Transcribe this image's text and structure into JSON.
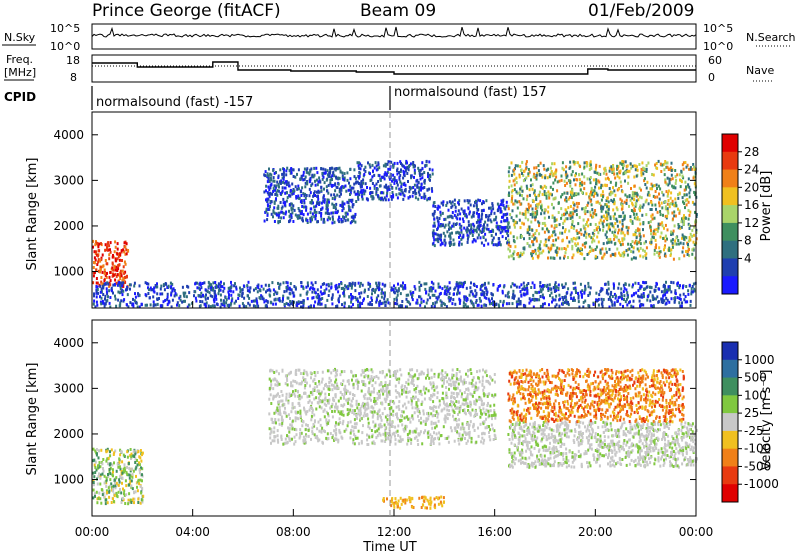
{
  "header": {
    "station": "Prince George (fitACF)",
    "beam": "Beam 09",
    "date": "01/Feb/2009"
  },
  "sky_panel": {
    "left_label": "N.Sky",
    "right_label": "N.Search",
    "left_ticks": [
      "10^5",
      "10^0"
    ],
    "right_ticks": [
      "10^5",
      "10^0"
    ]
  },
  "freq_panel": {
    "left_label_1": "Freq.",
    "left_label_2": "[MHz]",
    "right_label": "Nave",
    "left_ticks": [
      "18",
      "8"
    ],
    "right_ticks": [
      "60",
      "0"
    ]
  },
  "cpid": {
    "label": "CPID",
    "segments": [
      {
        "label": "normalsound (fast) -157",
        "start_hour": 0
      },
      {
        "label": "normalsound (fast) 157",
        "start_hour": 12
      }
    ]
  },
  "chart_data": [
    {
      "type": "heatmap",
      "name": "power",
      "ylabel": "Slant Range [km]",
      "ylim": [
        200,
        4500
      ],
      "yticks": [
        "1000",
        "2000",
        "3000",
        "4000"
      ],
      "xlim_hours": [
        0,
        24
      ],
      "colorbar_label": "Power [dB]",
      "colorbar_ticks": [
        "4",
        "8",
        "12",
        "16",
        "20",
        "24",
        "28"
      ],
      "colors": [
        "#1a1aff",
        "#1f3fb0",
        "#2f6f7f",
        "#3f8f5f",
        "#a9d46a",
        "#f0c020",
        "#f08018",
        "#e83a10",
        "#e00000"
      ],
      "features": [
        {
          "from_hour": 0.0,
          "to_hour": 1.4,
          "from_km": 700,
          "to_km": 1700,
          "level": "high"
        },
        {
          "from_hour": 6.8,
          "to_hour": 10.5,
          "from_km": 2100,
          "to_km": 3300,
          "level": "low"
        },
        {
          "from_hour": 10.5,
          "to_hour": 13.5,
          "from_km": 2600,
          "to_km": 3450,
          "level": "low"
        },
        {
          "from_hour": 13.5,
          "to_hour": 16.5,
          "from_km": 1600,
          "to_km": 2600,
          "level": "low"
        },
        {
          "from_hour": 16.5,
          "to_hour": 24.0,
          "from_km": 1300,
          "to_km": 3450,
          "level": "medium"
        },
        {
          "from_hour": 0.0,
          "to_hour": 24.0,
          "from_km": 250,
          "to_km": 800,
          "level": "low"
        }
      ]
    },
    {
      "type": "heatmap",
      "name": "velocity",
      "ylabel": "Slant Range [km]",
      "ylim": [
        200,
        4500
      ],
      "yticks": [
        "1000",
        "2000",
        "3000",
        "4000"
      ],
      "xlim_hours": [
        0,
        24
      ],
      "xticks": [
        "00:00",
        "04:00",
        "08:00",
        "12:00",
        "16:00",
        "20:00",
        "00:00"
      ],
      "xlabel": "Time UT",
      "colorbar_label": "Velocity [m s⁻¹]",
      "colorbar_ticks": [
        "1000",
        "500",
        "100",
        "25",
        "-25",
        "-100",
        "-500",
        "-1000"
      ],
      "colors": [
        "#1a2fb0",
        "#2e6fa0",
        "#3f8f5f",
        "#80c840",
        "#c8c8c8",
        "#f0c020",
        "#f08018",
        "#e83a10",
        "#e00000"
      ],
      "features": [
        {
          "from_hour": 0.0,
          "to_hour": 2.0,
          "from_km": 500,
          "to_km": 1700,
          "level": "positive-low"
        },
        {
          "from_hour": 7.0,
          "to_hour": 16.0,
          "from_km": 1800,
          "to_km": 3450,
          "level": "near-zero"
        },
        {
          "from_hour": 16.5,
          "to_hour": 24.0,
          "from_km": 1300,
          "to_km": 2300,
          "level": "near-zero"
        },
        {
          "from_hour": 16.5,
          "to_hour": 23.5,
          "from_km": 2300,
          "to_km": 3450,
          "level": "negative"
        },
        {
          "from_hour": 11.5,
          "to_hour": 14.0,
          "from_km": 400,
          "to_km": 650,
          "level": "negative-low"
        }
      ]
    }
  ]
}
